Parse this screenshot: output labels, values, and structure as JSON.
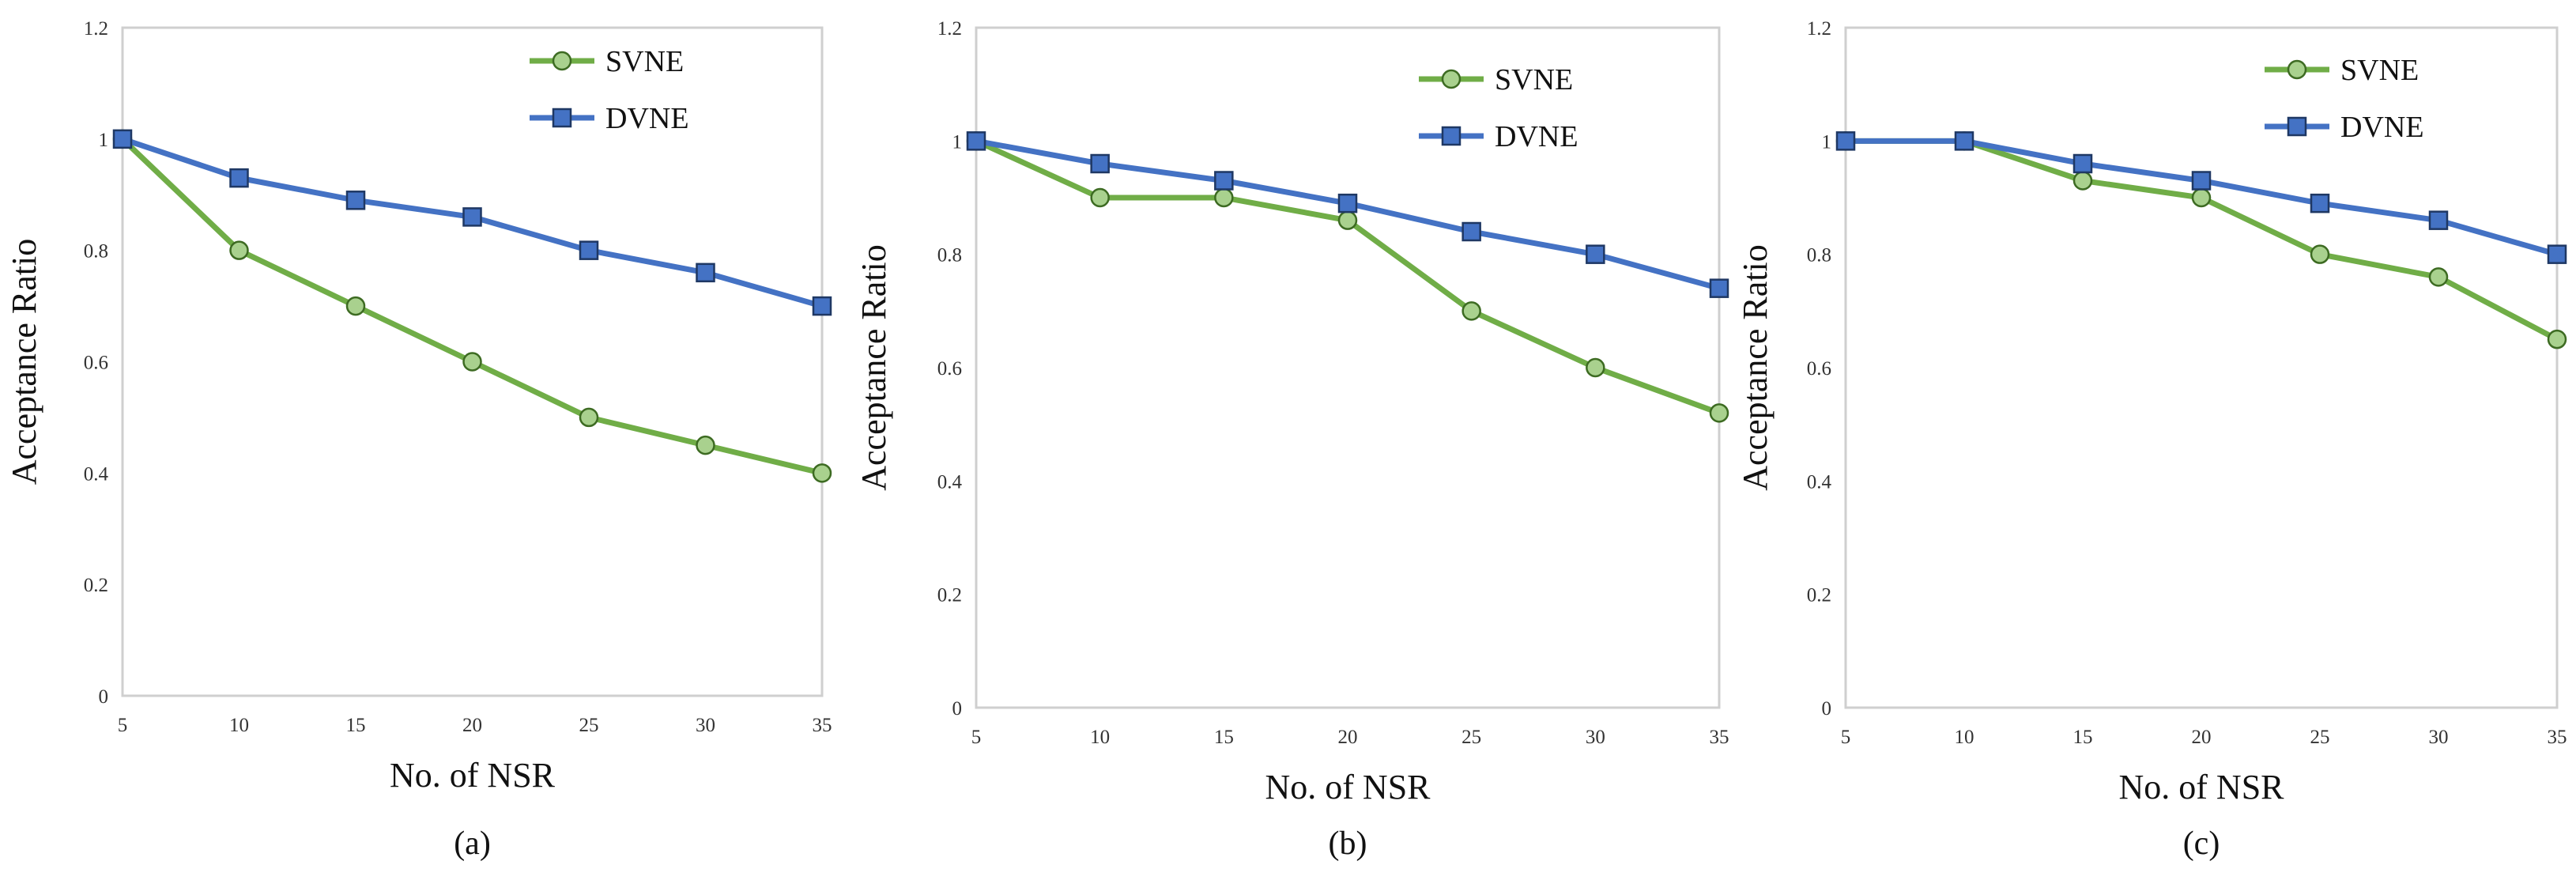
{
  "colors": {
    "svne": "#70ad47",
    "svne_marker": "#a9d18e",
    "dvne": "#4472c4",
    "dvne_marker": "#4472c4"
  },
  "chart_data": [
    {
      "type": "line",
      "panel": "(a)",
      "xlabel": "No. of NSR",
      "ylabel": "Acceptance Ratio",
      "x": [
        5,
        10,
        15,
        20,
        25,
        30,
        35
      ],
      "xticks": [
        "5",
        "10",
        "15",
        "20",
        "25",
        "30",
        "35"
      ],
      "yticks": [
        "0",
        "0.2",
        "0.4",
        "0.6",
        "0.8",
        "1",
        "1.2"
      ],
      "ylim": [
        0,
        1.2
      ],
      "xlim": [
        5,
        35
      ],
      "legend": "top-right",
      "series": [
        {
          "name": "SVNE",
          "values": [
            1.0,
            0.8,
            0.7,
            0.6,
            0.5,
            0.45,
            0.4
          ]
        },
        {
          "name": "DVNE",
          "values": [
            1.0,
            0.93,
            0.89,
            0.86,
            0.8,
            0.76,
            0.7
          ]
        }
      ]
    },
    {
      "type": "line",
      "panel": "(b)",
      "xlabel": "No. of NSR",
      "ylabel": "Acceptance Ratio",
      "x": [
        5,
        10,
        15,
        20,
        25,
        30,
        35
      ],
      "xticks": [
        "5",
        "10",
        "15",
        "20",
        "25",
        "30",
        "35"
      ],
      "yticks": [
        "0",
        "0.2",
        "0.4",
        "0.6",
        "0.8",
        "1",
        "1.2"
      ],
      "ylim": [
        0,
        1.2
      ],
      "xlim": [
        5,
        35
      ],
      "legend": "top-right",
      "series": [
        {
          "name": "SVNE",
          "values": [
            1.0,
            0.9,
            0.9,
            0.86,
            0.7,
            0.6,
            0.52
          ]
        },
        {
          "name": "DVNE",
          "values": [
            1.0,
            0.96,
            0.93,
            0.89,
            0.84,
            0.8,
            0.74
          ]
        }
      ]
    },
    {
      "type": "line",
      "panel": "(c)",
      "xlabel": "No. of NSR",
      "ylabel": "Acceptance Ratio",
      "x": [
        5,
        10,
        15,
        20,
        25,
        30,
        35
      ],
      "xticks": [
        "5",
        "10",
        "15",
        "20",
        "25",
        "30",
        "35"
      ],
      "yticks": [
        "0",
        "0.2",
        "0.4",
        "0.6",
        "0.8",
        "1",
        "1.2"
      ],
      "ylim": [
        0,
        1.2
      ],
      "xlim": [
        5,
        35
      ],
      "legend": "top-right",
      "series": [
        {
          "name": "SVNE",
          "values": [
            1.0,
            1.0,
            0.93,
            0.9,
            0.8,
            0.76,
            0.65
          ]
        },
        {
          "name": "DVNE",
          "values": [
            1.0,
            1.0,
            0.96,
            0.93,
            0.89,
            0.86,
            0.8
          ]
        }
      ]
    }
  ]
}
